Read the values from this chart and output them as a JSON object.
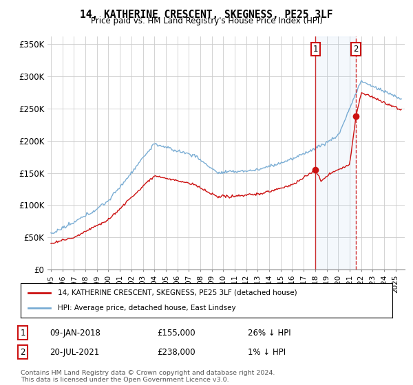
{
  "title": "14, KATHERINE CRESCENT, SKEGNESS, PE25 3LF",
  "subtitle": "Price paid vs. HM Land Registry's House Price Index (HPI)",
  "ylabel_ticks": [
    "£0",
    "£50K",
    "£100K",
    "£150K",
    "£200K",
    "£250K",
    "£300K",
    "£350K"
  ],
  "ytick_values": [
    0,
    50000,
    100000,
    150000,
    200000,
    250000,
    300000,
    350000
  ],
  "ylim": [
    0,
    362000
  ],
  "xlim_start": 1994.7,
  "xlim_end": 2025.8,
  "hpi_color": "#7aadd4",
  "price_color": "#cc1111",
  "marker1_date": 2018.03,
  "marker2_date": 2021.55,
  "marker1_price": 155000,
  "marker2_price": 238000,
  "legend1": "14, KATHERINE CRESCENT, SKEGNESS, PE25 3LF (detached house)",
  "legend2": "HPI: Average price, detached house, East Lindsey",
  "annotation1_label": "1",
  "annotation1_date": "09-JAN-2018",
  "annotation1_price": "£155,000",
  "annotation1_hpi": "26% ↓ HPI",
  "annotation2_label": "2",
  "annotation2_date": "20-JUL-2021",
  "annotation2_price": "£238,000",
  "annotation2_hpi": "1% ↓ HPI",
  "footer": "Contains HM Land Registry data © Crown copyright and database right 2024.\nThis data is licensed under the Open Government Licence v3.0.",
  "background_color": "#ffffff",
  "grid_color": "#cccccc"
}
